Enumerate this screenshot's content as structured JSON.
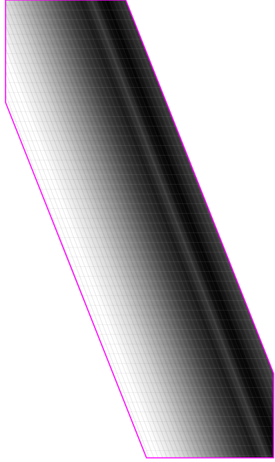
{
  "image": {
    "subject": "grayscale-band-scan",
    "background_color": "#ffffff",
    "outline_color": "#ff00ff",
    "band_dark_color": "#000000",
    "band_light_color": "#ffffff"
  }
}
